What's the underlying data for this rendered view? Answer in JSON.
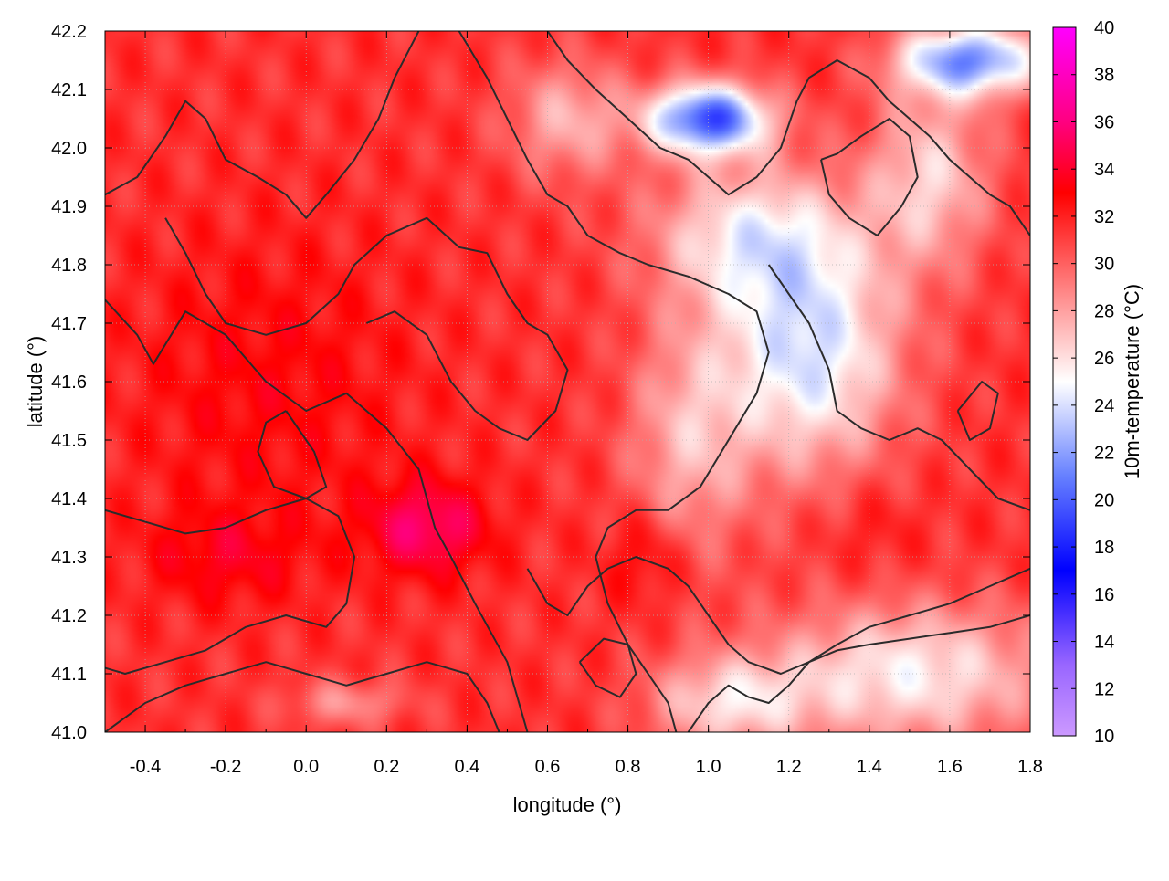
{
  "chart_data": {
    "type": "heatmap",
    "title": "",
    "xlabel": "longitude (°)",
    "ylabel": "latitude (°)",
    "colorbar_label": "10m-temperature (°C)",
    "xlim": [
      -0.5,
      1.8
    ],
    "ylim": [
      41.0,
      42.2
    ],
    "clim": [
      10,
      40
    ],
    "x_ticks": [
      -0.4,
      -0.2,
      0.0,
      0.2,
      0.4,
      0.6,
      0.8,
      1.0,
      1.2,
      1.4,
      1.6,
      1.8
    ],
    "x_tick_labels": [
      "-0.4",
      "-0.2",
      "0.0",
      "0.2",
      "0.4",
      "0.6",
      "0.8",
      "1.0",
      "1.2",
      "1.4",
      "1.6",
      "1.8"
    ],
    "y_ticks": [
      41.0,
      41.1,
      41.2,
      41.3,
      41.4,
      41.5,
      41.6,
      41.7,
      41.8,
      41.9,
      42.0,
      42.1,
      42.2
    ],
    "y_tick_labels": [
      "41.0",
      "41.1",
      "41.2",
      "41.3",
      "41.4",
      "41.5",
      "41.6",
      "41.7",
      "41.8",
      "41.9",
      "42.0",
      "42.1",
      "42.2"
    ],
    "colorbar_ticks": [
      10,
      12,
      14,
      16,
      18,
      20,
      22,
      24,
      26,
      28,
      30,
      32,
      34,
      36,
      38,
      40
    ],
    "colorbar_tick_labels": [
      "10",
      "12",
      "14",
      "16",
      "18",
      "20",
      "22",
      "24",
      "26",
      "28",
      "30",
      "32",
      "34",
      "36",
      "38",
      "40"
    ],
    "grid": true,
    "colormap": [
      {
        "value": 10,
        "color": "#cc99ff"
      },
      {
        "value": 13,
        "color": "#9966ff"
      },
      {
        "value": 17,
        "color": "#0000ff"
      },
      {
        "value": 21,
        "color": "#6680ff"
      },
      {
        "value": 25,
        "color": "#ffffff"
      },
      {
        "value": 29,
        "color": "#ff8080"
      },
      {
        "value": 33,
        "color": "#ff0000"
      },
      {
        "value": 36,
        "color": "#ff0080"
      },
      {
        "value": 40,
        "color": "#ff00ff"
      }
    ],
    "temperature_field": {
      "background": 31.5,
      "anomalies": [
        {
          "x": -0.1,
          "y": 41.6,
          "sx": 0.35,
          "sy": 0.25,
          "dT": 1.5
        },
        {
          "x": 0.3,
          "y": 41.35,
          "sx": 0.15,
          "sy": 0.08,
          "dT": 4.0
        },
        {
          "x": -0.2,
          "y": 41.3,
          "sx": 0.2,
          "sy": 0.08,
          "dT": 2.0
        },
        {
          "x": 1.0,
          "y": 42.05,
          "sx": 0.15,
          "sy": 0.06,
          "dT": -12.0
        },
        {
          "x": 1.65,
          "y": 42.15,
          "sx": 0.18,
          "sy": 0.06,
          "dT": -10.0
        },
        {
          "x": 1.25,
          "y": 41.65,
          "sx": 0.22,
          "sy": 0.2,
          "dT": -7.5
        },
        {
          "x": 1.1,
          "y": 41.85,
          "sx": 0.25,
          "sy": 0.12,
          "dT": -5.5
        },
        {
          "x": 1.55,
          "y": 41.95,
          "sx": 0.15,
          "sy": 0.15,
          "dT": -5.0
        },
        {
          "x": 1.5,
          "y": 41.1,
          "sx": 0.35,
          "sy": 0.12,
          "dT": -6.0
        },
        {
          "x": 1.05,
          "y": 41.05,
          "sx": 0.2,
          "sy": 0.08,
          "dT": -5.0
        },
        {
          "x": 0.95,
          "y": 41.5,
          "sx": 0.15,
          "sy": 0.2,
          "dT": -4.0
        },
        {
          "x": 0.65,
          "y": 42.05,
          "sx": 0.15,
          "sy": 0.1,
          "dT": -4.0
        },
        {
          "x": 0.85,
          "y": 41.3,
          "sx": 0.1,
          "sy": 0.08,
          "dT": 2.0
        },
        {
          "x": 1.4,
          "y": 41.35,
          "sx": 0.12,
          "sy": 0.08,
          "dT": 1.0
        },
        {
          "x": 0.1,
          "y": 41.05,
          "sx": 0.15,
          "sy": 0.04,
          "dT": -3.0
        }
      ]
    },
    "contours": [
      {
        "name": "contour-1",
        "points": [
          [
            -0.5,
            41.74
          ],
          [
            -0.42,
            41.68
          ],
          [
            -0.38,
            41.63
          ],
          [
            -0.3,
            41.72
          ],
          [
            -0.2,
            41.68
          ],
          [
            -0.1,
            41.6
          ],
          [
            0.0,
            41.55
          ],
          [
            0.1,
            41.58
          ],
          [
            0.2,
            41.52
          ],
          [
            0.28,
            41.45
          ],
          [
            0.32,
            41.35
          ],
          [
            0.36,
            41.3
          ],
          [
            0.42,
            41.22
          ],
          [
            0.5,
            41.12
          ],
          [
            0.55,
            41.0
          ]
        ]
      },
      {
        "name": "contour-2",
        "points": [
          [
            -0.5,
            41.38
          ],
          [
            -0.4,
            41.36
          ],
          [
            -0.3,
            41.34
          ],
          [
            -0.2,
            41.35
          ],
          [
            -0.1,
            41.38
          ],
          [
            0.0,
            41.4
          ],
          [
            0.08,
            41.37
          ],
          [
            0.12,
            41.3
          ],
          [
            0.1,
            41.22
          ],
          [
            0.05,
            41.18
          ],
          [
            -0.05,
            41.2
          ],
          [
            -0.15,
            41.18
          ],
          [
            -0.25,
            41.14
          ],
          [
            -0.35,
            41.12
          ],
          [
            -0.45,
            41.1
          ],
          [
            -0.5,
            41.11
          ]
        ]
      },
      {
        "name": "contour-3",
        "points": [
          [
            -0.5,
            41.92
          ],
          [
            -0.42,
            41.95
          ],
          [
            -0.35,
            42.02
          ],
          [
            -0.3,
            42.08
          ],
          [
            -0.25,
            42.05
          ],
          [
            -0.2,
            41.98
          ],
          [
            -0.12,
            41.95
          ],
          [
            -0.05,
            41.92
          ],
          [
            0.0,
            41.88
          ],
          [
            0.05,
            41.92
          ],
          [
            0.12,
            41.98
          ],
          [
            0.18,
            42.05
          ],
          [
            0.22,
            42.12
          ],
          [
            0.28,
            42.2
          ]
        ]
      },
      {
        "name": "contour-4",
        "points": [
          [
            -0.35,
            41.88
          ],
          [
            -0.3,
            41.82
          ],
          [
            -0.25,
            41.75
          ],
          [
            -0.2,
            41.7
          ],
          [
            -0.1,
            41.68
          ],
          [
            0.0,
            41.7
          ],
          [
            0.08,
            41.75
          ],
          [
            0.12,
            41.8
          ],
          [
            0.2,
            41.85
          ],
          [
            0.3,
            41.88
          ],
          [
            0.38,
            41.83
          ],
          [
            0.45,
            41.82
          ],
          [
            0.5,
            41.75
          ],
          [
            0.55,
            41.7
          ],
          [
            0.6,
            41.68
          ],
          [
            0.65,
            41.62
          ],
          [
            0.62,
            41.55
          ],
          [
            0.55,
            41.5
          ],
          [
            0.48,
            41.52
          ],
          [
            0.42,
            41.55
          ],
          [
            0.36,
            41.6
          ],
          [
            0.3,
            41.68
          ],
          [
            0.22,
            41.72
          ],
          [
            0.15,
            41.7
          ]
        ]
      },
      {
        "name": "contour-5",
        "points": [
          [
            0.38,
            42.2
          ],
          [
            0.45,
            42.12
          ],
          [
            0.5,
            42.05
          ],
          [
            0.55,
            41.98
          ],
          [
            0.6,
            41.92
          ],
          [
            0.65,
            41.9
          ],
          [
            0.7,
            41.85
          ],
          [
            0.78,
            41.82
          ],
          [
            0.85,
            41.8
          ],
          [
            0.95,
            41.78
          ],
          [
            1.05,
            41.75
          ],
          [
            1.12,
            41.72
          ],
          [
            1.15,
            41.65
          ],
          [
            1.12,
            41.58
          ],
          [
            1.05,
            41.5
          ],
          [
            0.98,
            41.42
          ],
          [
            0.9,
            41.38
          ],
          [
            0.82,
            41.38
          ],
          [
            0.75,
            41.35
          ],
          [
            0.72,
            41.3
          ],
          [
            0.75,
            41.22
          ],
          [
            0.8,
            41.15
          ],
          [
            0.85,
            41.1
          ],
          [
            0.9,
            41.05
          ],
          [
            0.92,
            41.0
          ]
        ]
      },
      {
        "name": "contour-6",
        "points": [
          [
            0.6,
            42.2
          ],
          [
            0.65,
            42.15
          ],
          [
            0.72,
            42.1
          ],
          [
            0.8,
            42.05
          ],
          [
            0.88,
            42.0
          ],
          [
            0.95,
            41.98
          ],
          [
            1.0,
            41.95
          ],
          [
            1.05,
            41.92
          ],
          [
            1.12,
            41.95
          ],
          [
            1.18,
            42.0
          ],
          [
            1.22,
            42.08
          ],
          [
            1.25,
            42.12
          ],
          [
            1.32,
            42.15
          ],
          [
            1.4,
            42.12
          ],
          [
            1.45,
            42.08
          ],
          [
            1.5,
            42.05
          ],
          [
            1.55,
            42.02
          ],
          [
            1.6,
            41.98
          ],
          [
            1.65,
            41.95
          ],
          [
            1.7,
            41.92
          ],
          [
            1.75,
            41.9
          ],
          [
            1.8,
            41.85
          ]
        ]
      },
      {
        "name": "contour-7",
        "points": [
          [
            1.28,
            41.98
          ],
          [
            1.3,
            41.92
          ],
          [
            1.35,
            41.88
          ],
          [
            1.42,
            41.85
          ],
          [
            1.48,
            41.9
          ],
          [
            1.52,
            41.95
          ],
          [
            1.5,
            42.02
          ],
          [
            1.45,
            42.05
          ],
          [
            1.38,
            42.02
          ],
          [
            1.32,
            41.99
          ],
          [
            1.28,
            41.98
          ]
        ]
      },
      {
        "name": "contour-8",
        "points": [
          [
            1.15,
            41.8
          ],
          [
            1.2,
            41.75
          ],
          [
            1.25,
            41.7
          ],
          [
            1.3,
            41.62
          ],
          [
            1.32,
            41.55
          ],
          [
            1.38,
            41.52
          ],
          [
            1.45,
            41.5
          ],
          [
            1.52,
            41.52
          ],
          [
            1.58,
            41.5
          ],
          [
            1.65,
            41.45
          ],
          [
            1.72,
            41.4
          ],
          [
            1.8,
            41.38
          ]
        ]
      },
      {
        "name": "contour-9",
        "points": [
          [
            0.55,
            41.28
          ],
          [
            0.6,
            41.22
          ],
          [
            0.65,
            41.2
          ],
          [
            0.7,
            41.25
          ],
          [
            0.75,
            41.28
          ],
          [
            0.82,
            41.3
          ],
          [
            0.9,
            41.28
          ],
          [
            0.95,
            41.25
          ],
          [
            1.0,
            41.2
          ],
          [
            1.05,
            41.15
          ],
          [
            1.1,
            41.12
          ],
          [
            1.18,
            41.1
          ],
          [
            1.25,
            41.12
          ],
          [
            1.32,
            41.15
          ],
          [
            1.4,
            41.18
          ],
          [
            1.5,
            41.2
          ],
          [
            1.6,
            41.22
          ],
          [
            1.7,
            41.25
          ],
          [
            1.8,
            41.28
          ]
        ]
      },
      {
        "name": "contour-10",
        "points": [
          [
            0.95,
            41.0
          ],
          [
            1.0,
            41.05
          ],
          [
            1.05,
            41.08
          ],
          [
            1.1,
            41.06
          ],
          [
            1.15,
            41.05
          ],
          [
            1.2,
            41.08
          ],
          [
            1.25,
            41.12
          ],
          [
            1.32,
            41.14
          ],
          [
            1.4,
            41.15
          ],
          [
            1.5,
            41.16
          ],
          [
            1.6,
            41.17
          ],
          [
            1.7,
            41.18
          ],
          [
            1.8,
            41.2
          ]
        ]
      },
      {
        "name": "contour-11",
        "points": [
          [
            -0.5,
            41.0
          ],
          [
            -0.4,
            41.05
          ],
          [
            -0.3,
            41.08
          ],
          [
            -0.2,
            41.1
          ],
          [
            -0.1,
            41.12
          ],
          [
            0.0,
            41.1
          ],
          [
            0.1,
            41.08
          ],
          [
            0.2,
            41.1
          ],
          [
            0.3,
            41.12
          ],
          [
            0.4,
            41.1
          ],
          [
            0.45,
            41.05
          ],
          [
            0.48,
            41.0
          ]
        ]
      },
      {
        "name": "contour-12",
        "points": [
          [
            1.62,
            41.55
          ],
          [
            1.68,
            41.6
          ],
          [
            1.72,
            41.58
          ],
          [
            1.7,
            41.52
          ],
          [
            1.65,
            41.5
          ],
          [
            1.62,
            41.55
          ]
        ]
      },
      {
        "name": "contour-13",
        "points": [
          [
            -0.05,
            41.55
          ],
          [
            0.02,
            41.48
          ],
          [
            0.05,
            41.42
          ],
          [
            0.0,
            41.4
          ],
          [
            -0.08,
            41.42
          ],
          [
            -0.12,
            41.48
          ],
          [
            -0.1,
            41.53
          ],
          [
            -0.05,
            41.55
          ]
        ]
      },
      {
        "name": "contour-14",
        "points": [
          [
            0.68,
            41.12
          ],
          [
            0.72,
            41.08
          ],
          [
            0.78,
            41.06
          ],
          [
            0.82,
            41.1
          ],
          [
            0.8,
            41.15
          ],
          [
            0.74,
            41.16
          ],
          [
            0.68,
            41.12
          ]
        ]
      }
    ]
  }
}
